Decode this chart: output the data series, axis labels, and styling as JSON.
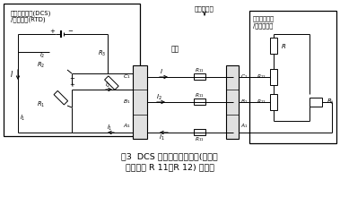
{
  "title_line1": "图3  DCS 三线制热电阻测量(已消除",
  "title_line2": "线路电阻 R 11、R 12) 接线图",
  "bg_color": "#ffffff",
  "box1_label1": "分散控制系统(DCS)",
  "box1_label2": "/热电阻卡(RTD)",
  "box2_label": "本体接线盒",
  "box3_label": "现场",
  "box4_label1": "电泵电机线槽",
  "box4_label2": "/偶合器控室"
}
